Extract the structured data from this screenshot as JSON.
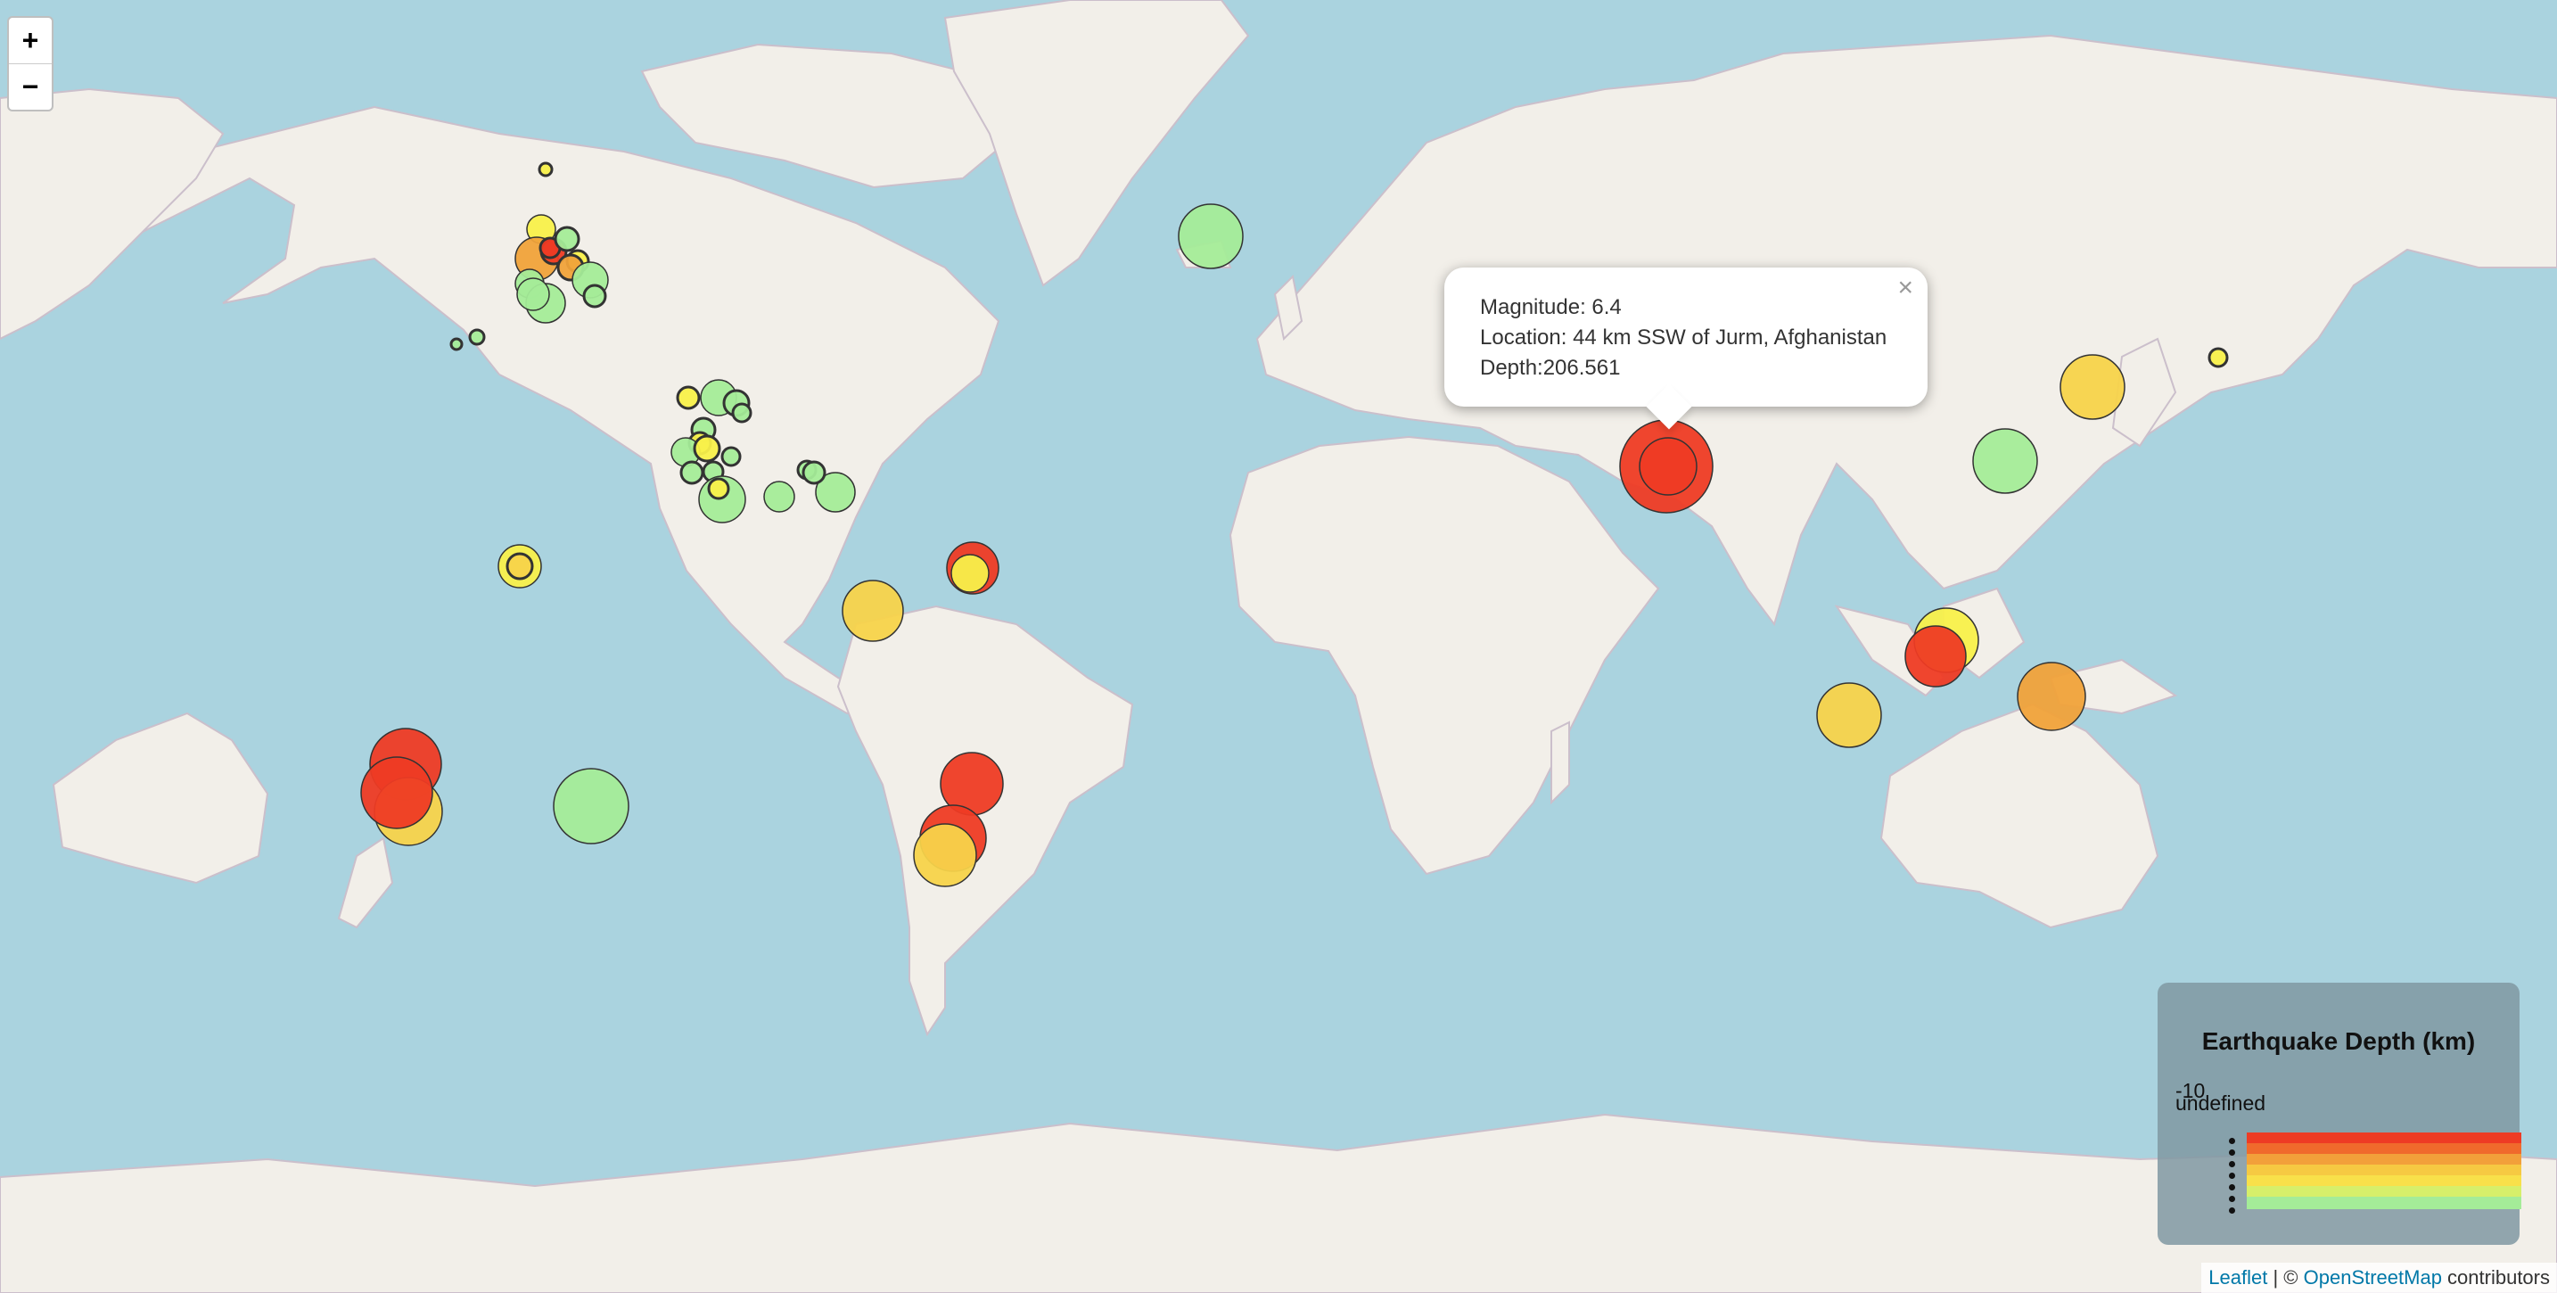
{
  "map": {
    "zoom_in_label": "+",
    "zoom_out_label": "−"
  },
  "popup": {
    "magnitude": "Magnitude: 6.4",
    "location": "Location: 44 km SSW of Jurm, Afghanistan",
    "depth": "Depth:206.561",
    "close_label": "×"
  },
  "legend": {
    "title": "Earthquake Depth (km)",
    "min_label": "-10",
    "undefined_label": "undefined",
    "colors": [
      "#ee3b24",
      "#f06a2c",
      "#f2a03a",
      "#f6c942",
      "#f8e04a",
      "#d6ef6a",
      "#a4ec98"
    ]
  },
  "attribution": {
    "leaflet": "Leaflet",
    "separator": " | © ",
    "osm": "OpenStreetMap",
    "suffix": " contributors"
  },
  "colors": {
    "water": "#aad3df",
    "land": "#f2efe9",
    "border": "#c9bcc9"
  }
}
